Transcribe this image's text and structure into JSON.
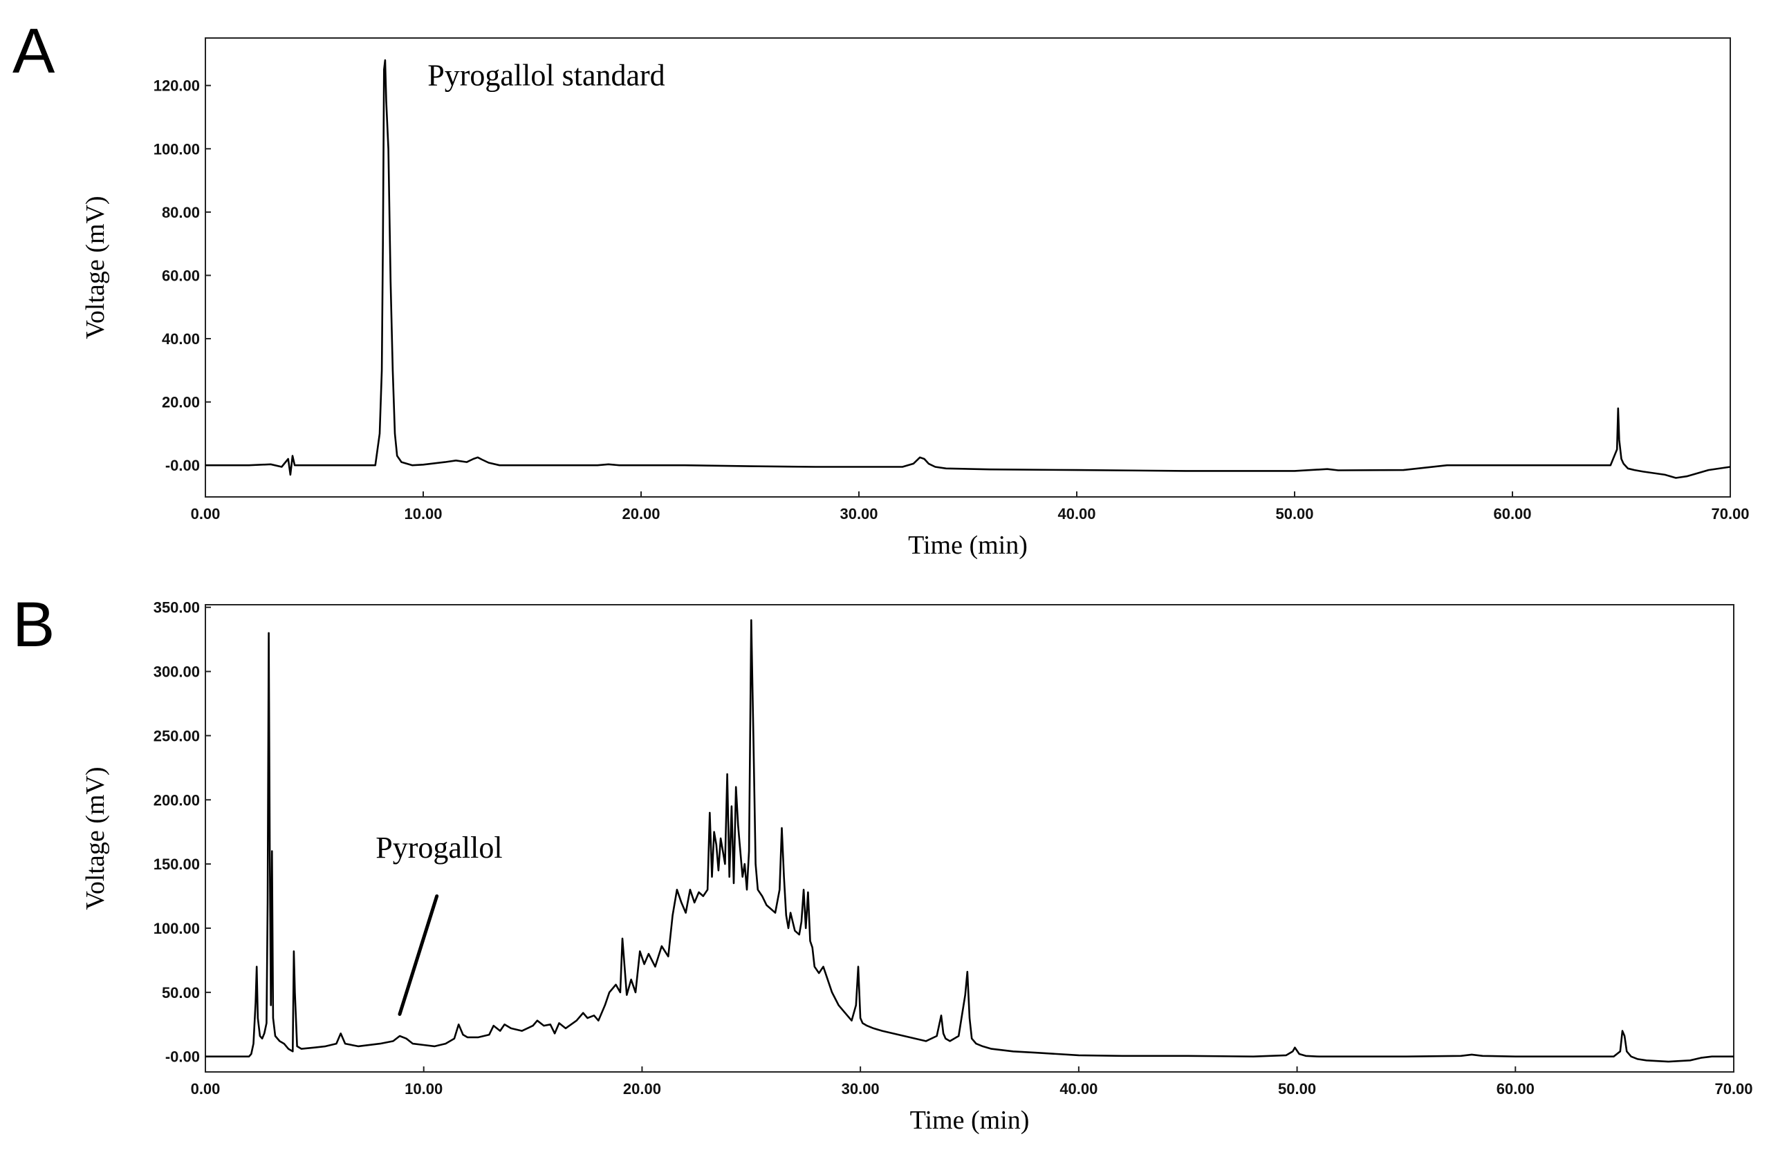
{
  "chart_data": [
    {
      "panel": "A",
      "type": "line",
      "xlabel": "Time (min)",
      "ylabel": "Voltage (mV)",
      "xlim": [
        0,
        70
      ],
      "ylim": [
        -10,
        135
      ],
      "xticks": [
        "0.00",
        "10.00",
        "20.00",
        "30.00",
        "40.00",
        "50.00",
        "60.00",
        "70.00"
      ],
      "yticks": [
        "-0.00",
        "20.00",
        "40.00",
        "60.00",
        "80.00",
        "100.00",
        "120.00"
      ],
      "annotations": [
        {
          "text": "Pyrogallol  standard",
          "x": 10.2,
          "y": 120
        }
      ],
      "series": [
        {
          "x": [
            0,
            1,
            2,
            3,
            3.5,
            3.8,
            3.9,
            4.0,
            4.1,
            4.3,
            5,
            6,
            7,
            7.8,
            8.0,
            8.1,
            8.15,
            8.2,
            8.25,
            8.3,
            8.4,
            8.5,
            8.6,
            8.7,
            8.8,
            9.0,
            9.5,
            10,
            11,
            11.5,
            12,
            12.3,
            12.5,
            12.7,
            13,
            13.5,
            14,
            16,
            18,
            18.5,
            19,
            22,
            25,
            28,
            30,
            32,
            32.5,
            32.8,
            33.0,
            33.2,
            33.5,
            34,
            36,
            40,
            45,
            50,
            51.5,
            52,
            55,
            57,
            60,
            62,
            64.5,
            64.8,
            64.85,
            64.9,
            65.0,
            65.1,
            65.3,
            65.6,
            66,
            67,
            67.5,
            68,
            69,
            70
          ],
          "y": [
            0,
            0,
            0,
            0.3,
            -0.5,
            2,
            -3,
            3,
            0,
            0,
            0,
            0,
            0,
            0,
            10,
            30,
            70,
            125,
            128,
            115,
            100,
            58,
            30,
            10,
            3,
            1,
            0,
            0.2,
            1,
            1.5,
            1,
            2,
            2.5,
            1.8,
            0.8,
            0,
            0,
            0,
            0,
            0.3,
            0,
            0,
            -0.3,
            -0.5,
            -0.5,
            -0.5,
            0.5,
            2.5,
            2,
            0.5,
            -0.5,
            -1,
            -1.3,
            -1.5,
            -1.8,
            -1.8,
            -1.2,
            -1.6,
            -1.5,
            0,
            0,
            0,
            0,
            5,
            18,
            8,
            2,
            0.5,
            -1,
            -1.5,
            -2,
            -3,
            -4,
            -3.5,
            -1.5,
            -0.5
          ]
        }
      ]
    },
    {
      "panel": "B",
      "type": "line",
      "xlabel": "Time (min)",
      "ylabel": "Voltage (mV)",
      "xlim": [
        0,
        70
      ],
      "ylim": [
        -12,
        352
      ],
      "xticks": [
        "0.00",
        "10.00",
        "20.00",
        "30.00",
        "40.00",
        "50.00",
        "60.00",
        "70.00"
      ],
      "yticks": [
        "-0.00",
        "50.00",
        "100.00",
        "150.00",
        "200.00",
        "250.00",
        "300.00",
        "350.00"
      ],
      "annotations": [
        {
          "text": "Pyrogallol",
          "x": 7.8,
          "y": 155,
          "pointer_to": [
            8.9,
            33
          ],
          "pointer_from": [
            10.6,
            125
          ]
        }
      ],
      "series": [
        {
          "x": [
            0,
            1,
            2,
            2.1,
            2.2,
            2.3,
            2.35,
            2.4,
            2.5,
            2.6,
            2.7,
            2.8,
            2.85,
            2.9,
            2.95,
            3.0,
            3.05,
            3.1,
            3.2,
            3.4,
            3.6,
            3.8,
            4.0,
            4.05,
            4.1,
            4.2,
            4.4,
            5,
            5.5,
            6.0,
            6.2,
            6.4,
            7,
            8,
            8.6,
            8.9,
            9.2,
            9.5,
            10,
            10.5,
            11,
            11.4,
            11.6,
            11.8,
            12,
            12.5,
            13,
            13.2,
            13.5,
            13.7,
            14,
            14.5,
            15,
            15.2,
            15.5,
            15.8,
            16,
            16.2,
            16.5,
            17,
            17.3,
            17.5,
            17.8,
            18,
            18.3,
            18.5,
            18.8,
            19.0,
            19.1,
            19.3,
            19.5,
            19.7,
            19.9,
            20.1,
            20.3,
            20.6,
            20.9,
            21.2,
            21.4,
            21.6,
            21.8,
            22.0,
            22.2,
            22.4,
            22.6,
            22.8,
            23.0,
            23.1,
            23.2,
            23.3,
            23.4,
            23.5,
            23.6,
            23.8,
            23.9,
            24.0,
            24.1,
            24.2,
            24.3,
            24.4,
            24.5,
            24.6,
            24.7,
            24.8,
            24.9,
            25.0,
            25.1,
            25.2,
            25.3,
            25.5,
            25.7,
            25.9,
            26.1,
            26.3,
            26.4,
            26.5,
            26.6,
            26.7,
            26.8,
            27.0,
            27.2,
            27.3,
            27.4,
            27.5,
            27.6,
            27.7,
            27.8,
            27.9,
            28.1,
            28.3,
            28.5,
            28.7,
            29.0,
            29.3,
            29.6,
            29.8,
            29.9,
            30.0,
            30.1,
            30.3,
            30.6,
            31,
            32,
            33,
            33.5,
            33.7,
            33.8,
            33.9,
            34.1,
            34.5,
            34.8,
            34.9,
            35.0,
            35.1,
            35.3,
            35.6,
            36,
            37,
            38,
            39,
            40,
            42,
            45,
            48,
            49.5,
            49.8,
            49.9,
            50.1,
            50.4,
            51,
            53,
            55,
            57.5,
            58,
            58.5,
            60,
            62,
            64.5,
            64.8,
            64.9,
            65.0,
            65.1,
            65.3,
            65.6,
            66,
            67,
            67.5,
            68,
            68.5,
            69,
            70
          ],
          "y": [
            0,
            0,
            0,
            2,
            10,
            42,
            70,
            30,
            16,
            14,
            18,
            26,
            120,
            330,
            160,
            40,
            160,
            30,
            16,
            12,
            10,
            6,
            4,
            82,
            50,
            8,
            6,
            7,
            8,
            10,
            18,
            10,
            8,
            10,
            12,
            16,
            14,
            10,
            9,
            8,
            10,
            14,
            25,
            17,
            15,
            15,
            17,
            24,
            20,
            25,
            22,
            20,
            24,
            28,
            24,
            25,
            18,
            26,
            22,
            28,
            34,
            30,
            32,
            28,
            40,
            50,
            56,
            50,
            92,
            48,
            60,
            50,
            82,
            72,
            80,
            70,
            86,
            78,
            110,
            130,
            120,
            112,
            130,
            120,
            128,
            125,
            130,
            190,
            140,
            175,
            165,
            145,
            170,
            150,
            220,
            140,
            195,
            135,
            210,
            180,
            160,
            140,
            150,
            130,
            160,
            340,
            250,
            150,
            130,
            125,
            118,
            115,
            112,
            130,
            178,
            140,
            110,
            100,
            112,
            98,
            95,
            105,
            130,
            100,
            128,
            90,
            85,
            70,
            65,
            70,
            60,
            50,
            40,
            34,
            28,
            40,
            70,
            30,
            26,
            24,
            22,
            20,
            16,
            12,
            16,
            32,
            18,
            14,
            12,
            16,
            48,
            66,
            30,
            14,
            10,
            8,
            6,
            4,
            3,
            2,
            1,
            0.5,
            0.5,
            0,
            1,
            4,
            7,
            2,
            0.5,
            0,
            0,
            0,
            0.5,
            1.5,
            0.5,
            0,
            0,
            0,
            4,
            20,
            16,
            4,
            0,
            -2,
            -3,
            -4,
            -3.5,
            -3,
            -1,
            0,
            0
          ]
        }
      ]
    }
  ]
}
